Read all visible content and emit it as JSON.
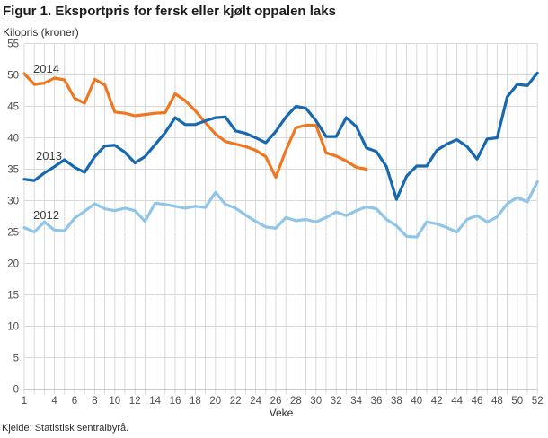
{
  "header": {
    "title": "Figur 1. Eksportpris for fersk eller kjølt oppalen laks",
    "subtitle": "Kilopris (kroner)"
  },
  "footer": {
    "source": "Kjelde: Statistisk sentralbyrå."
  },
  "colors": {
    "series_2014": "#F0761F",
    "series_2013": "#1668B1",
    "series_2012": "#8EC5E8",
    "gridline": "#D9D9D9",
    "axis_line": "#C9C9C9",
    "tick_text": "#4d4d4d",
    "label_text": "#3d3d3d"
  },
  "chart_data": {
    "type": "line",
    "title": "Figur 1. Eksportpris for fersk eller kjølt oppalen laks",
    "ylabel": "Kilopris (kroner)",
    "xlabel": "Veke",
    "ylim": [
      0,
      55
    ],
    "xlim": [
      1,
      52
    ],
    "grid": true,
    "legend_position": "inline-labels",
    "y_ticks": [
      0,
      5,
      10,
      15,
      20,
      25,
      30,
      35,
      40,
      45,
      50,
      55
    ],
    "x_ticks": [
      1,
      4,
      6,
      8,
      10,
      12,
      14,
      16,
      18,
      20,
      22,
      24,
      26,
      28,
      30,
      32,
      34,
      36,
      38,
      40,
      42,
      44,
      46,
      48,
      50,
      52
    ],
    "x_unit": "veke (week number)",
    "series": [
      {
        "name": "2014",
        "start_week": 1,
        "values": [
          50.2,
          48.5,
          48.7,
          49.5,
          49.2,
          46.3,
          45.5,
          49.3,
          48.4,
          44.1,
          43.9,
          43.5,
          43.7,
          43.9,
          44.0,
          47.0,
          45.9,
          44.3,
          42.4,
          40.6,
          39.4,
          39.0,
          38.6,
          38.0,
          37.0,
          33.7,
          38.0,
          41.6,
          42.0,
          42.0,
          37.6,
          37.1,
          36.3,
          35.3,
          35.0
        ]
      },
      {
        "name": "2013",
        "start_week": 1,
        "values": [
          33.4,
          33.2,
          34.4,
          35.4,
          36.5,
          35.3,
          34.5,
          37.0,
          38.7,
          38.8,
          37.7,
          36.0,
          37.0,
          38.9,
          40.8,
          43.2,
          42.1,
          42.1,
          42.7,
          43.2,
          43.3,
          41.1,
          40.7,
          40.0,
          39.2,
          41.0,
          43.3,
          45.0,
          44.7,
          42.7,
          40.2,
          40.2,
          43.2,
          41.8,
          38.4,
          37.8,
          35.4,
          30.2,
          33.9,
          35.5,
          35.5,
          38.0,
          39.0,
          39.7,
          38.6,
          36.6,
          39.8,
          40.0,
          46.5,
          48.5,
          48.3,
          50.3
        ]
      },
      {
        "name": "2012",
        "start_week": 1,
        "values": [
          25.7,
          25.0,
          26.6,
          25.3,
          25.2,
          27.2,
          28.3,
          29.5,
          28.7,
          28.4,
          28.8,
          28.4,
          26.7,
          29.6,
          29.4,
          29.1,
          28.8,
          29.1,
          28.9,
          31.3,
          29.4,
          28.8,
          27.7,
          26.7,
          25.8,
          25.6,
          27.3,
          26.8,
          27.0,
          26.6,
          27.3,
          28.2,
          27.6,
          28.4,
          29.0,
          28.7,
          27.0,
          26.0,
          24.3,
          24.2,
          26.6,
          26.3,
          25.7,
          25.0,
          27.0,
          27.6,
          26.6,
          27.4,
          29.5,
          30.5,
          29.8,
          33.0
        ]
      }
    ]
  }
}
